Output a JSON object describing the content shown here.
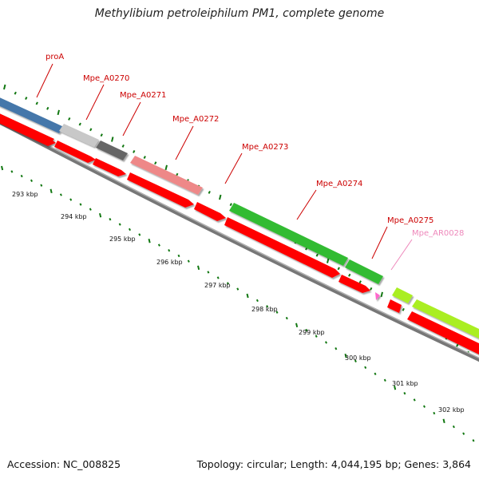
{
  "title": "Methylibium petroleiphilum PM1, complete genome",
  "footer": {
    "accession": "Accession: NC_008825",
    "stats": "Topology: circular; Length: 4,044,195 bp; Genes: 3,864"
  },
  "colors": {
    "red_feature": "#ff0000",
    "backbone": "#888888",
    "tick_green": "#117711",
    "label_red": "#cc0000",
    "label_pink": "#ee88bb"
  },
  "ticks": [
    "293 kbp",
    "294 kbp",
    "295 kbp",
    "296 kbp",
    "297 kbp",
    "298 kbp",
    "299 kbp",
    "300 kbp",
    "301 kbp",
    "302 kbp"
  ],
  "genes": [
    {
      "name": "proA",
      "color": "#4477aa",
      "label_color": "#cc0000"
    },
    {
      "name": "Mpe_A0270",
      "color": "#c8c8c8",
      "label_color": "#cc0000"
    },
    {
      "name": "Mpe_A0271",
      "color": "#666666",
      "label_color": "#cc0000"
    },
    {
      "name": "Mpe_A0272",
      "color": "#ee8888",
      "label_color": "#cc0000"
    },
    {
      "name": "Mpe_A0273",
      "color": "#ff0000",
      "label_color": "#cc0000"
    },
    {
      "name": "Mpe_A0274",
      "color": "#33bb33",
      "label_color": "#cc0000"
    },
    {
      "name": "Mpe_A0275",
      "color": "#33bb33",
      "label_color": "#cc0000"
    },
    {
      "name": "Mpe_AR0028",
      "color": "#ff66cc",
      "label_color": "#ee88bb"
    },
    {
      "name": "",
      "color": "#aaee22",
      "label_color": "#cc0000"
    }
  ]
}
